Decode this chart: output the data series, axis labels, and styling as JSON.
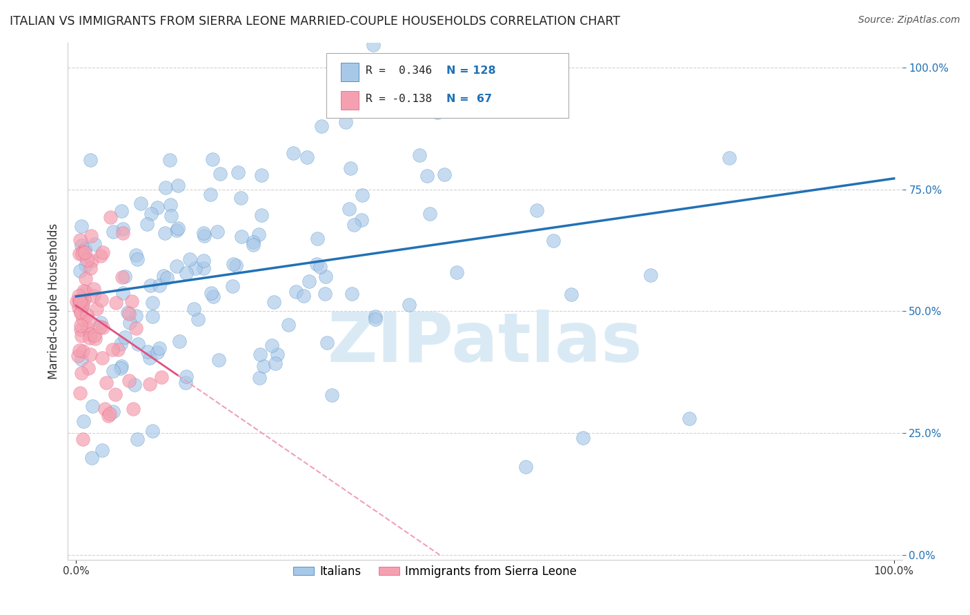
{
  "title": "ITALIAN VS IMMIGRANTS FROM SIERRA LEONE MARRIED-COUPLE HOUSEHOLDS CORRELATION CHART",
  "source": "Source: ZipAtlas.com",
  "ylabel": "Married-couple Households",
  "ytick_positions": [
    0.0,
    0.25,
    0.5,
    0.75,
    1.0
  ],
  "ytick_labels": [
    "0.0%",
    "25.0%",
    "50.0%",
    "75.0%",
    "100.0%"
  ],
  "legend_labels": [
    "Italians",
    "Immigrants from Sierra Leone"
  ],
  "r_italian": 0.346,
  "r_sierra": -0.138,
  "n_italian": 128,
  "n_sierra": 67,
  "color_italian": "#a8c8e8",
  "color_sierra": "#f4a0b0",
  "color_italian_line": "#2171b5",
  "color_sierra_line": "#e05080",
  "color_sierra_dash": "#f0a0b8",
  "watermark": "ZIPatlas",
  "watermark_color": "#daeaf5",
  "background_color": "#ffffff",
  "grid_color": "#cccccc",
  "xlim_min": 0.0,
  "xlim_max": 1.0,
  "ylim_min": 0.0,
  "ylim_max": 1.05
}
